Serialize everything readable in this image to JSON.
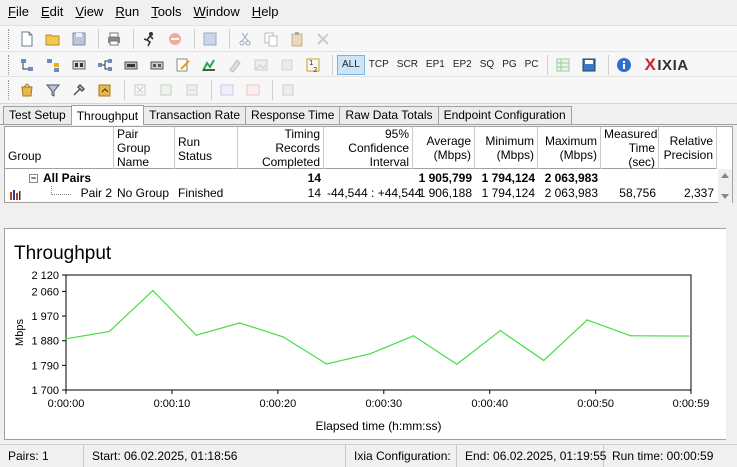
{
  "menu": [
    "File",
    "Edit",
    "View",
    "Run",
    "Tools",
    "Window",
    "Help"
  ],
  "toolbar": {
    "protocol_filters": [
      "ALL",
      "TCP",
      "SCR",
      "EP1",
      "EP2",
      "SQ",
      "PG",
      "PC"
    ],
    "selected_filter": "ALL",
    "logo": "IXIA",
    "logo_mark": "X"
  },
  "tabs": [
    "Test Setup",
    "Throughput",
    "Transaction Rate",
    "Response Time",
    "Raw Data Totals",
    "Endpoint Configuration"
  ],
  "active_tab": "Throughput",
  "grid": {
    "headers": {
      "group": "Group",
      "pair_group_name": "Pair Group Name",
      "run_status": "Run Status",
      "timing_records": "Timing Records Completed",
      "confidence": "95% Confidence Interval",
      "average": "Average (Mbps)",
      "minimum": "Minimum (Mbps)",
      "maximum": "Maximum (Mbps)",
      "measured_time": "Measured Time (sec)",
      "relative_precision": "Relative Precision"
    },
    "summary": {
      "label": "All Pairs",
      "expander": "−",
      "timing_records": "14",
      "average": "1 905,799",
      "minimum": "1 794,124",
      "maximum": "2 063,983"
    },
    "rows": [
      {
        "pair": "Pair 2",
        "group_name": "No Group",
        "run_status": "Finished",
        "timing_records": "14",
        "confidence": "-44,544 : +44,544",
        "average": "1 906,188",
        "minimum": "1 794,124",
        "maximum": "2 063,983",
        "measured_time": "58,756",
        "relative_precision": "2,337"
      }
    ]
  },
  "chart_data": {
    "type": "line",
    "title": "Throughput",
    "xlabel": "Elapsed time (h:mm:ss)",
    "ylabel": "Mbps",
    "ylim": [
      1700,
      2120
    ],
    "yticks": [
      "1 700",
      "1 790",
      "1 880",
      "1 970",
      "2 060",
      "2 120"
    ],
    "ytick_values": [
      1700,
      1790,
      1880,
      1970,
      2060,
      2120
    ],
    "xlim": [
      0,
      59
    ],
    "xticks": [
      "0:00:00",
      "0:00:10",
      "0:00:20",
      "0:00:30",
      "0:00:40",
      "0:00:50",
      "0:00:59"
    ],
    "xtick_values": [
      0,
      10,
      20,
      30,
      40,
      50,
      59
    ],
    "grid": false,
    "line_color": "#44dd44",
    "series": [
      {
        "x": [
          0,
          4.1,
          8.2,
          12.3,
          16.4,
          20.5,
          24.6,
          28.7,
          32.8,
          36.9,
          41.0,
          45.1,
          49.2,
          53.3,
          58.8
        ],
        "values": [
          1887,
          1914,
          2063,
          1900,
          1945,
          1894,
          1795,
          1832,
          1898,
          1794,
          1917,
          1808,
          1956,
          1898,
          1897
        ]
      }
    ]
  },
  "status": {
    "pairs": "Pairs: 1",
    "start": "Start: 06.02.2025, 01:18:56",
    "config": "Ixia Configuration:",
    "end": "End: 06.02.2025, 01:19:55",
    "run_time": "Run time: 00:00:59"
  }
}
